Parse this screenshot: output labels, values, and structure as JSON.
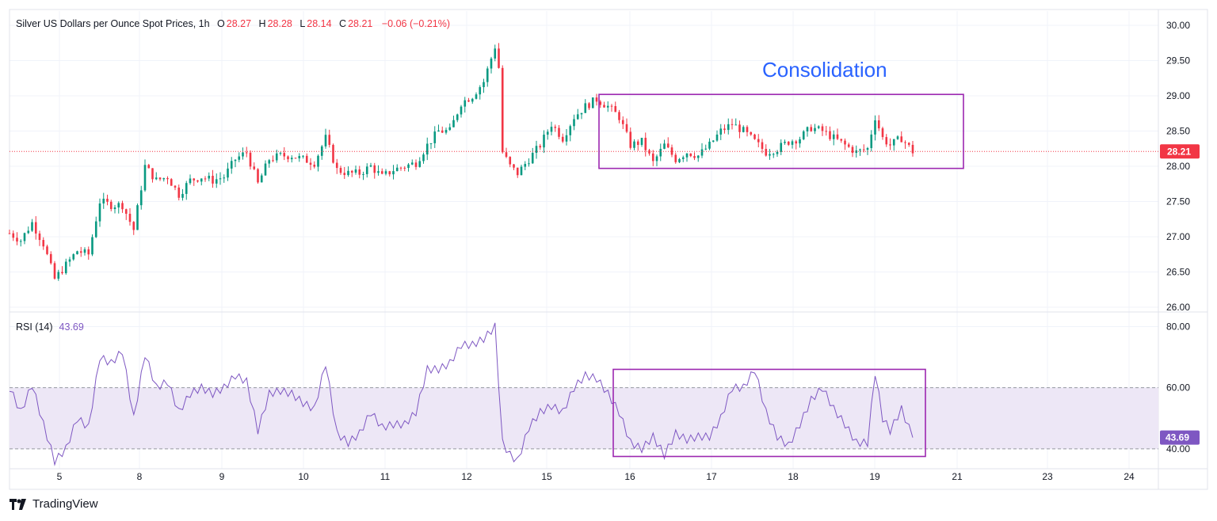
{
  "header": {
    "title": "Silver US Dollars per Ounce Spot Prices, 1h",
    "open_label": "O",
    "open": "28.27",
    "high_label": "H",
    "high": "28.28",
    "low_label": "L",
    "low": "28.14",
    "close_label": "C",
    "close": "28.21",
    "change": "−0.06 (−0.21%)"
  },
  "rsi_legend": {
    "label": "RSI (14)",
    "value": "43.69"
  },
  "annotation": "Consolidation",
  "brand": "TradingView",
  "colors": {
    "up": "#089981",
    "down": "#f23645",
    "rsi": "#7e57c2",
    "rsi_band": "#ede7f6",
    "box": "#9c27b0",
    "annotation": "#2962ff",
    "grid": "#f0f3fa",
    "price_tag": "#f23645",
    "rsi_tag": "#7e57c2"
  },
  "chart_data": [
    {
      "type": "candlestick",
      "title": "Silver US Dollars per Ounce Spot Prices, 1h",
      "x_tick_labels": [
        "5",
        "8",
        "9",
        "10",
        "11",
        "12",
        "15",
        "16",
        "17",
        "18",
        "19",
        "21",
        "23",
        "24"
      ],
      "y_tick_labels": [
        "30.00",
        "29.50",
        "29.00",
        "28.50",
        "28.00",
        "27.50",
        "27.00",
        "26.50",
        "26.00"
      ],
      "ylim": [
        26.0,
        30.0
      ],
      "last_price": "28.21",
      "last_price_line": "dotted",
      "grid": true,
      "approx_close_path": [
        [
          0,
          27.05
        ],
        [
          3,
          26.95
        ],
        [
          6,
          27.2
        ],
        [
          9,
          26.9
        ],
        [
          12,
          26.4
        ],
        [
          15,
          26.6
        ],
        [
          18,
          26.8
        ],
        [
          21,
          26.75
        ],
        [
          24,
          27.5
        ],
        [
          27,
          27.45
        ],
        [
          30,
          27.45
        ],
        [
          33,
          27.1
        ],
        [
          36,
          28.0
        ],
        [
          39,
          27.8
        ],
        [
          42,
          27.85
        ],
        [
          45,
          27.6
        ],
        [
          48,
          27.8
        ],
        [
          51,
          27.85
        ],
        [
          54,
          27.8
        ],
        [
          57,
          27.85
        ],
        [
          60,
          28.1
        ],
        [
          63,
          28.2
        ],
        [
          66,
          27.75
        ],
        [
          69,
          28.1
        ],
        [
          72,
          28.15
        ],
        [
          75,
          28.15
        ],
        [
          78,
          28.1
        ],
        [
          81,
          28.05
        ],
        [
          84,
          28.4
        ],
        [
          87,
          27.95
        ],
        [
          90,
          27.9
        ],
        [
          93,
          27.9
        ],
        [
          96,
          28.0
        ],
        [
          99,
          27.85
        ],
        [
          102,
          27.95
        ],
        [
          105,
          28.0
        ],
        [
          108,
          28.05
        ],
        [
          111,
          28.3
        ],
        [
          114,
          28.5
        ],
        [
          117,
          28.5
        ],
        [
          120,
          28.9
        ],
        [
          123,
          29.0
        ],
        [
          126,
          29.2
        ],
        [
          129,
          29.7
        ],
        [
          130,
          29.4
        ],
        [
          131,
          28.2
        ],
        [
          133,
          28.0
        ],
        [
          135,
          27.9
        ],
        [
          138,
          28.1
        ],
        [
          141,
          28.3
        ],
        [
          144,
          28.6
        ],
        [
          147,
          28.4
        ],
        [
          150,
          28.7
        ],
        [
          153,
          28.85
        ],
        [
          156,
          28.95
        ],
        [
          159,
          28.85
        ],
        [
          162,
          28.7
        ],
        [
          165,
          28.3
        ],
        [
          168,
          28.35
        ],
        [
          171,
          28.05
        ],
        [
          174,
          28.3
        ],
        [
          177,
          28.1
        ],
        [
          180,
          28.2
        ],
        [
          183,
          28.15
        ],
        [
          186,
          28.3
        ],
        [
          189,
          28.5
        ],
        [
          192,
          28.6
        ],
        [
          195,
          28.5
        ],
        [
          198,
          28.35
        ],
        [
          201,
          28.2
        ],
        [
          204,
          28.25
        ],
        [
          207,
          28.35
        ],
        [
          210,
          28.4
        ],
        [
          213,
          28.55
        ],
        [
          216,
          28.5
        ],
        [
          219,
          28.4
        ],
        [
          222,
          28.3
        ],
        [
          225,
          28.2
        ],
        [
          228,
          28.25
        ],
        [
          230,
          28.7
        ],
        [
          232,
          28.4
        ],
        [
          234,
          28.3
        ],
        [
          237,
          28.4
        ],
        [
          240,
          28.21
        ]
      ]
    },
    {
      "type": "line",
      "title": "RSI (14)",
      "x_tick_labels": [
        "5",
        "8",
        "9",
        "10",
        "11",
        "12",
        "15",
        "16",
        "17",
        "18",
        "19",
        "21",
        "23",
        "24"
      ],
      "y_tick_labels": [
        "80.00",
        "60.00",
        "40.00"
      ],
      "ylim": [
        34,
        84
      ],
      "band": [
        40,
        60
      ],
      "last_value": "43.69",
      "approx_values": [
        [
          0,
          60
        ],
        [
          3,
          52
        ],
        [
          6,
          61
        ],
        [
          9,
          48
        ],
        [
          12,
          36
        ],
        [
          15,
          40
        ],
        [
          18,
          50
        ],
        [
          21,
          47
        ],
        [
          24,
          70
        ],
        [
          27,
          68
        ],
        [
          30,
          72
        ],
        [
          33,
          50
        ],
        [
          36,
          71
        ],
        [
          39,
          60
        ],
        [
          42,
          62
        ],
        [
          45,
          52
        ],
        [
          48,
          58
        ],
        [
          51,
          60
        ],
        [
          54,
          58
        ],
        [
          57,
          60
        ],
        [
          60,
          64
        ],
        [
          63,
          62
        ],
        [
          66,
          46
        ],
        [
          69,
          58
        ],
        [
          72,
          59
        ],
        [
          75,
          58
        ],
        [
          78,
          55
        ],
        [
          81,
          53
        ],
        [
          84,
          68
        ],
        [
          87,
          45
        ],
        [
          90,
          42
        ],
        [
          93,
          45
        ],
        [
          96,
          52
        ],
        [
          99,
          47
        ],
        [
          102,
          48
        ],
        [
          105,
          48
        ],
        [
          108,
          52
        ],
        [
          111,
          66
        ],
        [
          114,
          66
        ],
        [
          117,
          68
        ],
        [
          120,
          74
        ],
        [
          123,
          74
        ],
        [
          126,
          76
        ],
        [
          129,
          80
        ],
        [
          131,
          42
        ],
        [
          133,
          38
        ],
        [
          135,
          36
        ],
        [
          138,
          47
        ],
        [
          141,
          52
        ],
        [
          144,
          54
        ],
        [
          147,
          52
        ],
        [
          150,
          60
        ],
        [
          153,
          64
        ],
        [
          156,
          63
        ],
        [
          159,
          58
        ],
        [
          162,
          52
        ],
        [
          165,
          42
        ],
        [
          168,
          40
        ],
        [
          171,
          44
        ],
        [
          174,
          38
        ],
        [
          177,
          45
        ],
        [
          180,
          43
        ],
        [
          183,
          44
        ],
        [
          186,
          44
        ],
        [
          189,
          50
        ],
        [
          192,
          60
        ],
        [
          195,
          60
        ],
        [
          198,
          66
        ],
        [
          201,
          52
        ],
        [
          204,
          44
        ],
        [
          207,
          41
        ],
        [
          210,
          48
        ],
        [
          213,
          56
        ],
        [
          216,
          60
        ],
        [
          219,
          53
        ],
        [
          222,
          48
        ],
        [
          225,
          42
        ],
        [
          228,
          42
        ],
        [
          230,
          65
        ],
        [
          232,
          50
        ],
        [
          234,
          46
        ],
        [
          237,
          53
        ],
        [
          240,
          43.69
        ]
      ]
    }
  ]
}
